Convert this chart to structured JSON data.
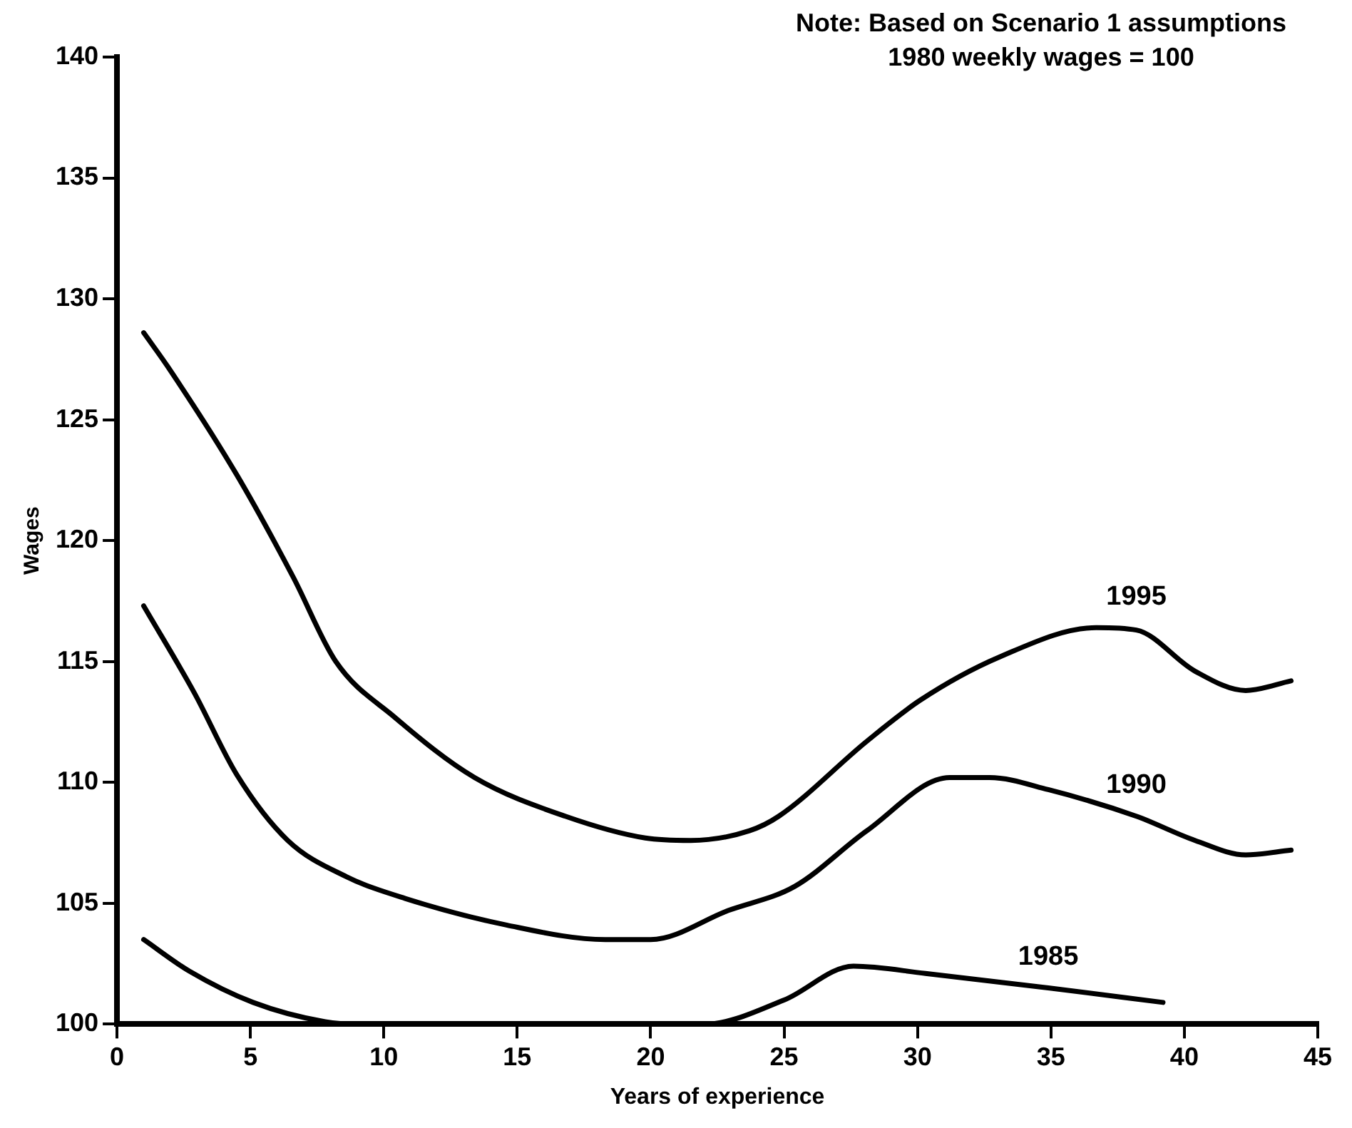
{
  "chart_data": {
    "type": "line",
    "xlabel": "Years of experience",
    "ylabel": "Wages",
    "annotations": [
      "Note: Based on Scenario 1 assumptions",
      "1980 weekly wages = 100"
    ],
    "xlim": [
      0,
      45
    ],
    "xticks": [
      0,
      5,
      10,
      15,
      20,
      25,
      30,
      35,
      40,
      45
    ],
    "ylim": [
      100,
      140
    ],
    "yticks": [
      100,
      105,
      110,
      115,
      120,
      125,
      130,
      135,
      140
    ],
    "grid": false,
    "legend": false,
    "marker": "none",
    "line_style": "solid",
    "series": [
      {
        "name": "1995",
        "color": "#000000",
        "x": [
          1,
          1.9,
          4.5,
          6.6,
          8.2,
          10.4,
          13.4,
          16.8,
          19.8,
          21.5,
          23.7,
          24.8,
          28.1,
          30.1,
          33.1,
          36.7,
          38.2,
          40.4,
          42.3,
          44
        ],
        "values": [
          128.6,
          127.2,
          122.7,
          118.5,
          115,
          112.7,
          110.2,
          108.6,
          107.7,
          107.6,
          108,
          108.6,
          111.7,
          113.4,
          115.2,
          116.4,
          116.3,
          114.6,
          113.8,
          114.2
        ]
      },
      {
        "name": "1990",
        "color": "#000000",
        "x": [
          1,
          2.9,
          4.5,
          6.4,
          8.6,
          10.8,
          14.6,
          18.3,
          20,
          22.9,
          25.4,
          28.1,
          31.2,
          32.7,
          34.9,
          38.2,
          40.4,
          42.3,
          44
        ],
        "values": [
          117.3,
          113.7,
          110.3,
          107.6,
          106.1,
          105.2,
          104.1,
          103.5,
          103.5,
          104.7,
          105.7,
          108,
          110.2,
          110.2,
          109.7,
          108.6,
          107.6,
          107,
          107.2
        ]
      },
      {
        "name": "1985",
        "color": "#000000",
        "x": [
          1,
          2.7,
          5.1,
          7.8,
          9,
          21,
          22,
          25,
          27.6,
          30.3,
          34.9,
          39.2
        ],
        "values": [
          103.5,
          102.2,
          100.9,
          100.1,
          100,
          100,
          100,
          101,
          102.4,
          102.1,
          101.5,
          100.9
        ]
      }
    ]
  }
}
